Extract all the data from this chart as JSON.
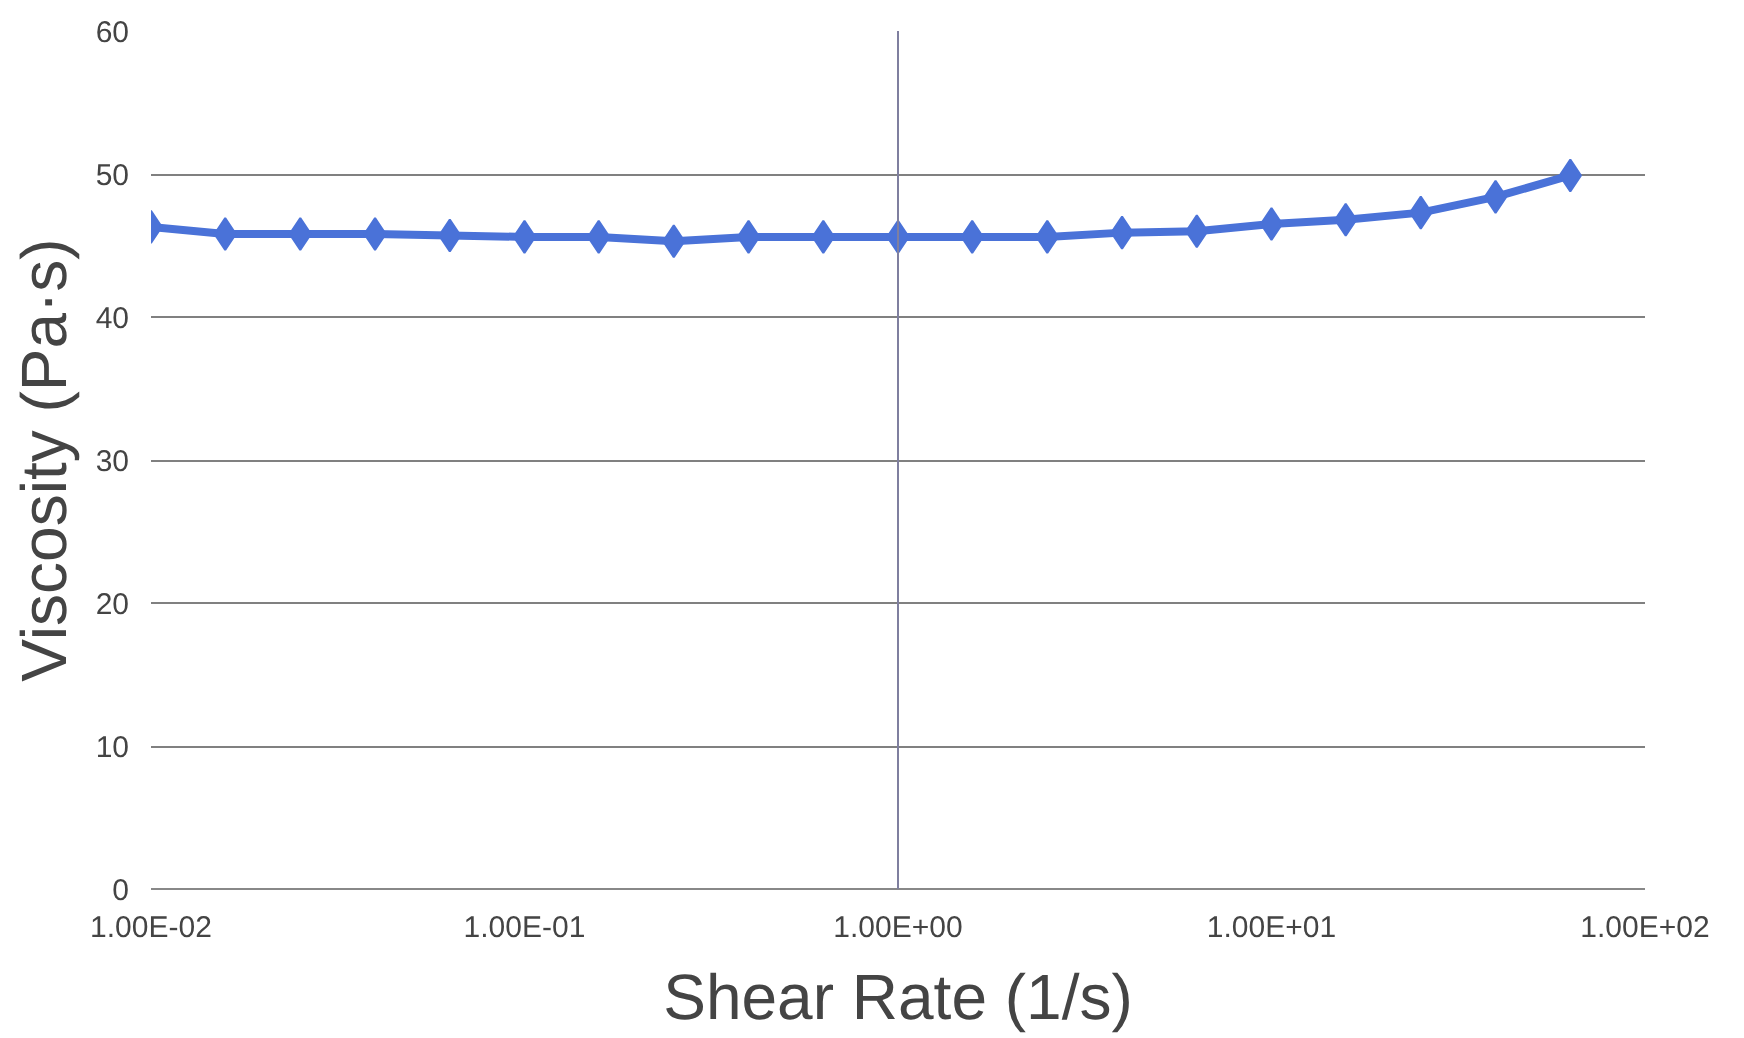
{
  "chart_data": {
    "type": "line",
    "xlabel": "Shear Rate (1/s)",
    "ylabel": "Viscosity (Pa·s)",
    "x": [
      0.01,
      0.0158,
      0.0251,
      0.0398,
      0.0631,
      0.1,
      0.158,
      0.251,
      0.398,
      0.631,
      1,
      1.58,
      2.51,
      3.98,
      6.31,
      10,
      15.8,
      25.1,
      39.8,
      63.1
    ],
    "series": [
      {
        "color": "#4a72d8",
        "values": [
          46.3,
          45.8,
          45.8,
          45.8,
          45.7,
          45.6,
          45.6,
          45.3,
          45.6,
          45.6,
          45.6,
          45.6,
          45.6,
          45.9,
          46.0,
          46.5,
          46.8,
          47.3,
          48.4,
          49.9
        ]
      }
    ],
    "log": "x",
    "xlim": [
      0.01,
      100
    ],
    "ylim": [
      0,
      60
    ],
    "xticks": [
      {
        "value": 0.01,
        "label": "1.00E-02"
      },
      {
        "value": 0.1,
        "label": "1.00E-01"
      },
      {
        "value": 1,
        "label": "1.00E+00"
      },
      {
        "value": 10,
        "label": "1.00E+01"
      },
      {
        "value": 100,
        "label": "1.00E+02"
      }
    ],
    "yticks": [
      0,
      10,
      20,
      30,
      40,
      50,
      60
    ],
    "grid": "y",
    "marker": "diamond",
    "line_style": "solid",
    "ref_lines": [
      {
        "axis": "x",
        "value": 1,
        "color": "#7f7f9f"
      }
    ]
  }
}
